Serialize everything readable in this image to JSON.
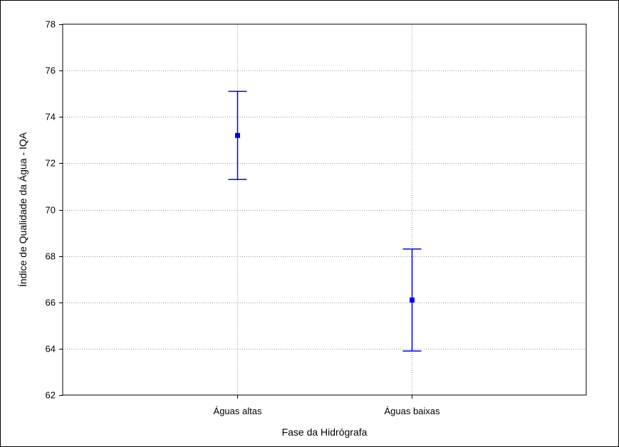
{
  "chart_data": {
    "type": "scatter",
    "subtype": "mean-with-error-bars",
    "title": "",
    "xlabel": "Fase da Hidrógrafa",
    "ylabel": "Índice de Qualidade da Água - IQA",
    "categories": [
      "Águas altas",
      "Águas baixas"
    ],
    "series": [
      {
        "mean": [
          73.2,
          66.1
        ],
        "lower": [
          71.3,
          63.9
        ],
        "upper": [
          75.1,
          68.3
        ]
      }
    ],
    "ylim": [
      62,
      78
    ],
    "yticks": [
      "62",
      "64",
      "66",
      "68",
      "70",
      "72",
      "74",
      "76",
      "78"
    ],
    "grid": true,
    "legend": "none",
    "colors": {
      "series": "#0000ee",
      "grid": "#9a9a9a",
      "axes": "#000000",
      "background": "#ffffff"
    }
  }
}
